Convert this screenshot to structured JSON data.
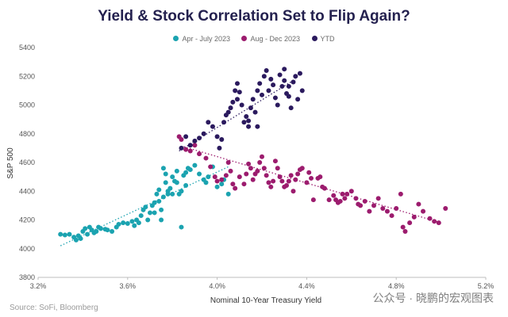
{
  "chart_data": {
    "type": "scatter",
    "title": "Yield & Stock Correlation Set to Flip Again?",
    "xlabel": "Nominal 10-Year Treasury Yield",
    "ylabel": "S&P 500",
    "xlim": [
      3.2,
      5.2
    ],
    "ylim": [
      3800,
      5400
    ],
    "x_ticks": [
      3.2,
      3.6,
      4.0,
      4.4,
      4.8,
      5.2
    ],
    "x_tick_labels": [
      "3.2%",
      "3.6%",
      "4.0%",
      "4.4%",
      "4.8%",
      "5.2%"
    ],
    "y_ticks": [
      3800,
      4000,
      4200,
      4400,
      4600,
      4800,
      5000,
      5200,
      5400
    ],
    "y_tick_labels": [
      "3800",
      "4000",
      "4200",
      "4400",
      "4600",
      "4800",
      "5000",
      "5200",
      "5400"
    ],
    "grid": false,
    "legend_position": "top-center",
    "series": [
      {
        "name": "Apr - July 2023",
        "color": "#1ba3b0",
        "trend": [
          [
            3.3,
            4020
          ],
          [
            4.05,
            4570
          ]
        ],
        "points": [
          [
            3.3,
            4100
          ],
          [
            3.32,
            4095
          ],
          [
            3.34,
            4100
          ],
          [
            3.36,
            4080
          ],
          [
            3.37,
            4060
          ],
          [
            3.38,
            4090
          ],
          [
            3.39,
            4070
          ],
          [
            3.4,
            4120
          ],
          [
            3.41,
            4140
          ],
          [
            3.42,
            4100
          ],
          [
            3.43,
            4150
          ],
          [
            3.44,
            4130
          ],
          [
            3.45,
            4110
          ],
          [
            3.46,
            4120
          ],
          [
            3.47,
            4150
          ],
          [
            3.48,
            4140
          ],
          [
            3.5,
            4135
          ],
          [
            3.51,
            4130
          ],
          [
            3.53,
            4120
          ],
          [
            3.55,
            4150
          ],
          [
            3.56,
            4170
          ],
          [
            3.58,
            4180
          ],
          [
            3.6,
            4175
          ],
          [
            3.62,
            4190
          ],
          [
            3.63,
            4160
          ],
          [
            3.64,
            4200
          ],
          [
            3.65,
            4180
          ],
          [
            3.66,
            4230
          ],
          [
            3.67,
            4270
          ],
          [
            3.68,
            4290
          ],
          [
            3.69,
            4200
          ],
          [
            3.7,
            4250
          ],
          [
            3.71,
            4300
          ],
          [
            3.72,
            4320
          ],
          [
            3.72,
            4250
          ],
          [
            3.73,
            4380
          ],
          [
            3.74,
            4410
          ],
          [
            3.74,
            4330
          ],
          [
            3.75,
            4270
          ],
          [
            3.75,
            4200
          ],
          [
            3.76,
            4360
          ],
          [
            3.76,
            4560
          ],
          [
            3.77,
            4460
          ],
          [
            3.77,
            4520
          ],
          [
            3.78,
            4400
          ],
          [
            3.78,
            4380
          ],
          [
            3.79,
            4420
          ],
          [
            3.8,
            4380
          ],
          [
            3.8,
            4500
          ],
          [
            3.81,
            4470
          ],
          [
            3.82,
            4540
          ],
          [
            3.82,
            4460
          ],
          [
            3.83,
            4380
          ],
          [
            3.84,
            4400
          ],
          [
            3.85,
            4510
          ],
          [
            3.86,
            4530
          ],
          [
            3.86,
            4440
          ],
          [
            3.87,
            4560
          ],
          [
            3.88,
            4550
          ],
          [
            3.84,
            4150
          ],
          [
            3.9,
            4580
          ],
          [
            3.92,
            4520
          ],
          [
            3.94,
            4480
          ],
          [
            3.95,
            4460
          ],
          [
            3.96,
            4500
          ],
          [
            3.98,
            4570
          ],
          [
            4.0,
            4430
          ],
          [
            4.02,
            4450
          ],
          [
            4.03,
            4480
          ],
          [
            4.05,
            4380
          ]
        ]
      },
      {
        "name": "Aug - Dec 2023",
        "color": "#9c1c6e",
        "trend": [
          [
            3.85,
            4710
          ],
          [
            5.0,
            4180
          ]
        ],
        "points": [
          [
            3.83,
            4780
          ],
          [
            3.84,
            4760
          ],
          [
            3.86,
            4690
          ],
          [
            3.88,
            4680
          ],
          [
            3.9,
            4720
          ],
          [
            3.92,
            4660
          ],
          [
            3.95,
            4630
          ],
          [
            3.97,
            4570
          ],
          [
            3.99,
            4500
          ],
          [
            4.0,
            4470
          ],
          [
            4.02,
            4480
          ],
          [
            4.04,
            4510
          ],
          [
            4.05,
            4600
          ],
          [
            4.06,
            4540
          ],
          [
            4.07,
            4450
          ],
          [
            4.08,
            4420
          ],
          [
            4.1,
            4500
          ],
          [
            4.12,
            4450
          ],
          [
            4.13,
            4520
          ],
          [
            4.14,
            4590
          ],
          [
            4.15,
            4560
          ],
          [
            4.16,
            4480
          ],
          [
            4.17,
            4520
          ],
          [
            4.18,
            4540
          ],
          [
            4.19,
            4600
          ],
          [
            4.2,
            4640
          ],
          [
            4.21,
            4560
          ],
          [
            4.22,
            4510
          ],
          [
            4.23,
            4460
          ],
          [
            4.24,
            4430
          ],
          [
            4.25,
            4470
          ],
          [
            4.26,
            4610
          ],
          [
            4.27,
            4560
          ],
          [
            4.28,
            4500
          ],
          [
            4.29,
            4470
          ],
          [
            4.3,
            4430
          ],
          [
            4.31,
            4440
          ],
          [
            4.32,
            4470
          ],
          [
            4.33,
            4510
          ],
          [
            4.34,
            4400
          ],
          [
            4.35,
            4480
          ],
          [
            4.36,
            4520
          ],
          [
            4.37,
            4550
          ],
          [
            4.38,
            4560
          ],
          [
            4.4,
            4460
          ],
          [
            4.41,
            4530
          ],
          [
            4.42,
            4490
          ],
          [
            4.43,
            4340
          ],
          [
            4.45,
            4490
          ],
          [
            4.46,
            4500
          ],
          [
            4.47,
            4430
          ],
          [
            4.48,
            4420
          ],
          [
            4.5,
            4340
          ],
          [
            4.52,
            4370
          ],
          [
            4.53,
            4340
          ],
          [
            4.54,
            4320
          ],
          [
            4.55,
            4330
          ],
          [
            4.56,
            4380
          ],
          [
            4.57,
            4350
          ],
          [
            4.58,
            4380
          ],
          [
            4.6,
            4400
          ],
          [
            4.62,
            4350
          ],
          [
            4.63,
            4310
          ],
          [
            4.64,
            4300
          ],
          [
            4.66,
            4330
          ],
          [
            4.68,
            4260
          ],
          [
            4.7,
            4300
          ],
          [
            4.72,
            4350
          ],
          [
            4.74,
            4280
          ],
          [
            4.76,
            4260
          ],
          [
            4.78,
            4230
          ],
          [
            4.8,
            4280
          ],
          [
            4.82,
            4380
          ],
          [
            4.83,
            4150
          ],
          [
            4.84,
            4120
          ],
          [
            4.86,
            4180
          ],
          [
            4.88,
            4220
          ],
          [
            4.9,
            4310
          ],
          [
            4.92,
            4260
          ],
          [
            4.95,
            4210
          ],
          [
            4.97,
            4190
          ],
          [
            4.99,
            4180
          ],
          [
            5.02,
            4280
          ]
        ]
      },
      {
        "name": "YTD",
        "color": "#2b1a5e",
        "trend": [
          [
            3.83,
            4680
          ],
          [
            4.35,
            5180
          ]
        ],
        "points": [
          [
            3.84,
            4700
          ],
          [
            3.86,
            4780
          ],
          [
            3.88,
            4720
          ],
          [
            3.9,
            4750
          ],
          [
            3.92,
            4770
          ],
          [
            3.94,
            4800
          ],
          [
            3.96,
            4880
          ],
          [
            3.98,
            4850
          ],
          [
            4.0,
            4780
          ],
          [
            4.01,
            4700
          ],
          [
            4.02,
            4760
          ],
          [
            4.03,
            4880
          ],
          [
            4.04,
            4930
          ],
          [
            4.05,
            4950
          ],
          [
            4.06,
            4980
          ],
          [
            4.07,
            5020
          ],
          [
            4.08,
            5100
          ],
          [
            4.09,
            5150
          ],
          [
            4.1,
            5090
          ],
          [
            4.11,
            5000
          ],
          [
            4.12,
            4880
          ],
          [
            4.13,
            4920
          ],
          [
            4.14,
            4890
          ],
          [
            4.15,
            4980
          ],
          [
            4.16,
            5040
          ],
          [
            4.17,
            4950
          ],
          [
            4.18,
            5100
          ],
          [
            4.19,
            5150
          ],
          [
            4.2,
            5070
          ],
          [
            4.21,
            5200
          ],
          [
            4.22,
            5240
          ],
          [
            4.23,
            5100
          ],
          [
            4.24,
            5180
          ],
          [
            4.25,
            5140
          ],
          [
            4.26,
            5050
          ],
          [
            4.27,
            5000
          ],
          [
            4.28,
            5210
          ],
          [
            4.29,
            5130
          ],
          [
            4.3,
            5170
          ],
          [
            4.31,
            5080
          ],
          [
            4.32,
            5130
          ],
          [
            4.33,
            4980
          ],
          [
            4.34,
            5160
          ],
          [
            4.35,
            5200
          ],
          [
            4.36,
            5040
          ],
          [
            4.37,
            5220
          ],
          [
            4.38,
            5100
          ],
          [
            4.3,
            5250
          ],
          [
            4.18,
            4850
          ],
          [
            4.14,
            4850
          ],
          [
            4.32,
            5060
          ],
          [
            4.09,
            5040
          ]
        ]
      }
    ]
  },
  "source_text": "Source: SoFi, Bloomberg",
  "watermark": "公众号 · 晓鹏的宏观图表"
}
